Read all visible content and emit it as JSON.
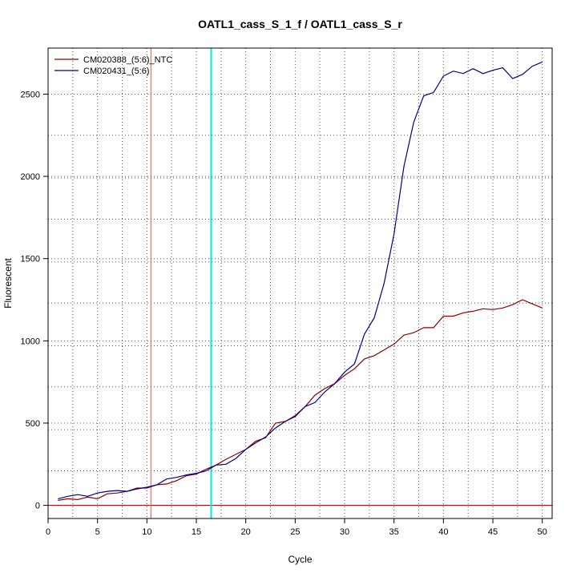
{
  "chart_data": {
    "type": "line",
    "title": "OATL1_cass_S_1_f / OATL1_cass_S_r",
    "xlabel": "Cycle",
    "ylabel": "Fluorescent",
    "xlim": [
      0,
      51
    ],
    "ylim": [
      -80,
      2780
    ],
    "x_ticks": [
      0,
      5,
      10,
      15,
      20,
      25,
      30,
      35,
      40,
      45,
      50
    ],
    "y_ticks": [
      0,
      500,
      1000,
      1500,
      2000,
      2500
    ],
    "x_grid": [
      2.5,
      7.5,
      12.5,
      17.5,
      22.5,
      27.5,
      32.5,
      37.5,
      42.5,
      47.5
    ],
    "y_grid": [
      210,
      460,
      720,
      970,
      1230,
      1480,
      1740,
      1990,
      2250,
      2500
    ],
    "grid": "dotted",
    "legend": "top-left",
    "hlines": [
      {
        "y": 0,
        "color": "#8B0000"
      }
    ],
    "vlines": [
      {
        "x": 10.4,
        "color": "#CD5C5C"
      },
      {
        "x": 16.5,
        "color": "#00E5EE"
      }
    ],
    "series": [
      {
        "name": "CM020388_(5:6)_NTC",
        "color": "#8B0000",
        "x": [
          1,
          2,
          3,
          4,
          5,
          6,
          7,
          8,
          9,
          10,
          11,
          12,
          13,
          14,
          15,
          16,
          17,
          18,
          19,
          20,
          21,
          22,
          23,
          24,
          25,
          26,
          27,
          28,
          29,
          30,
          31,
          32,
          33,
          34,
          35,
          36,
          37,
          38,
          39,
          40,
          41,
          42,
          43,
          44,
          45,
          46,
          47,
          48,
          49,
          50
        ],
        "y": [
          30,
          40,
          35,
          50,
          40,
          70,
          75,
          85,
          105,
          105,
          125,
          130,
          150,
          180,
          190,
          220,
          245,
          280,
          310,
          340,
          390,
          410,
          500,
          510,
          545,
          600,
          670,
          710,
          740,
          790,
          830,
          890,
          910,
          945,
          980,
          1035,
          1050,
          1080,
          1080,
          1150,
          1150,
          1170,
          1180,
          1195,
          1190,
          1200,
          1220,
          1250,
          1225,
          1200
        ]
      },
      {
        "name": "CM020431_(5:6)",
        "color": "#00008B",
        "x": [
          1,
          2,
          3,
          4,
          5,
          6,
          7,
          8,
          9,
          10,
          11,
          12,
          13,
          14,
          15,
          16,
          17,
          18,
          19,
          20,
          21,
          22,
          23,
          24,
          25,
          26,
          27,
          28,
          29,
          30,
          31,
          32,
          33,
          34,
          35,
          36,
          37,
          38,
          39,
          40,
          41,
          42,
          43,
          44,
          45,
          46,
          47,
          48,
          49,
          50
        ],
        "y": [
          40,
          55,
          65,
          55,
          75,
          85,
          90,
          85,
          100,
          110,
          125,
          160,
          170,
          185,
          195,
          210,
          245,
          250,
          285,
          340,
          380,
          415,
          470,
          510,
          540,
          600,
          625,
          690,
          740,
          810,
          860,
          1040,
          1140,
          1350,
          1650,
          2060,
          2330,
          2490,
          2510,
          2610,
          2640,
          2625,
          2655,
          2625,
          2645,
          2660,
          2595,
          2620,
          2670,
          2695
        ]
      }
    ]
  }
}
